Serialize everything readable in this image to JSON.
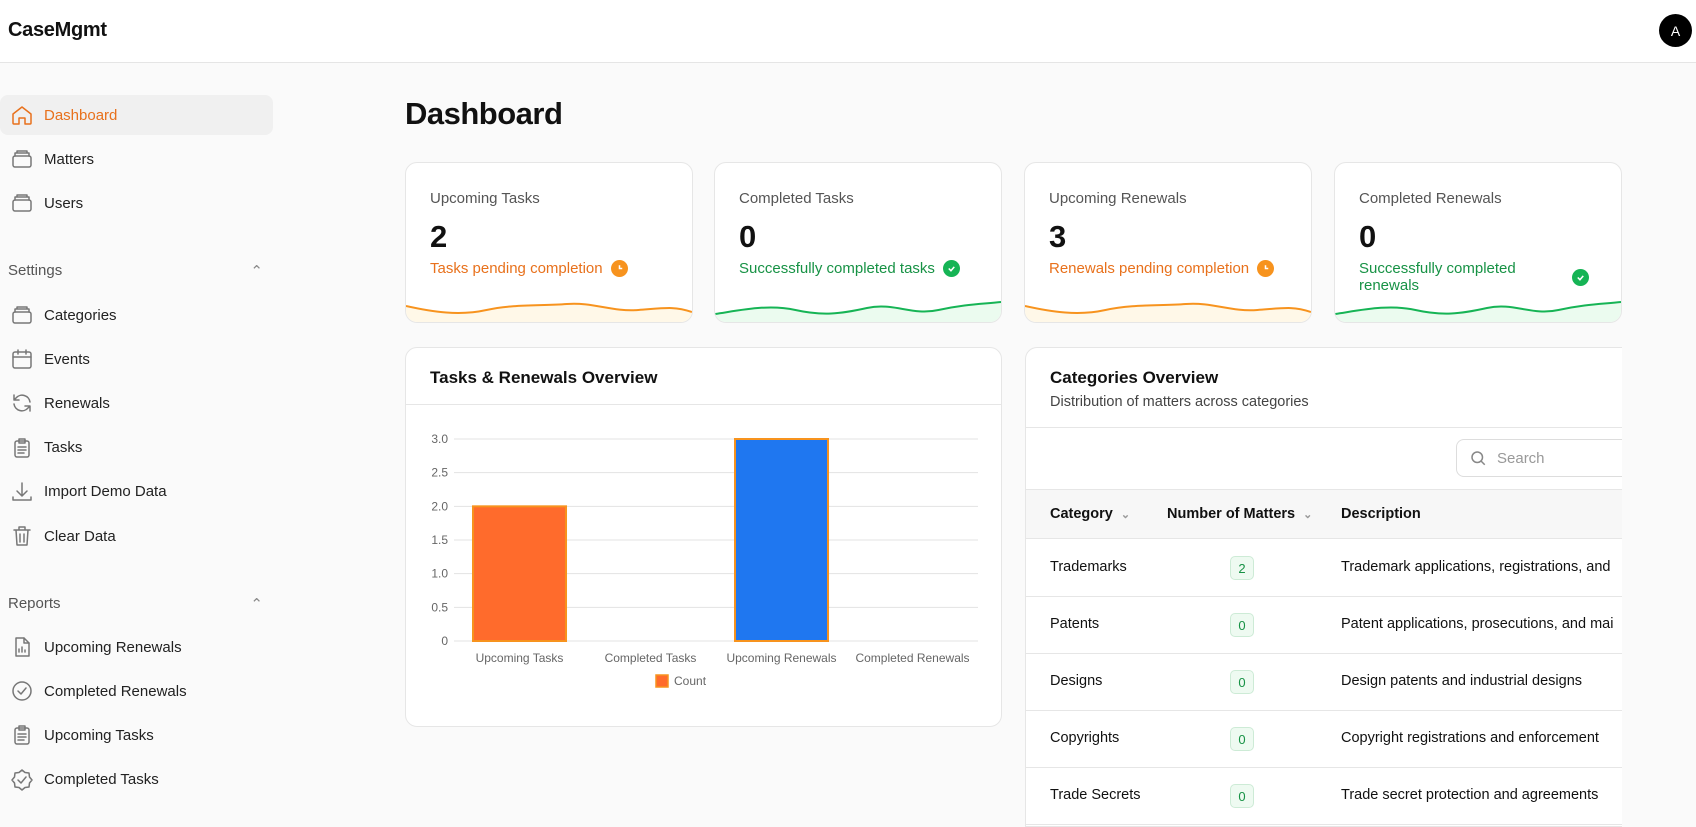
{
  "app": {
    "brand": "CaseMgmt",
    "avatar_initial": "A"
  },
  "sidebar": {
    "main": [
      {
        "label": "Dashboard",
        "icon": "home-icon"
      },
      {
        "label": "Matters",
        "icon": "archive-icon"
      },
      {
        "label": "Users",
        "icon": "archive-icon"
      }
    ],
    "settings_label": "Settings",
    "settings": [
      {
        "label": "Categories",
        "icon": "archive-icon"
      },
      {
        "label": "Events",
        "icon": "calendar-icon"
      },
      {
        "label": "Renewals",
        "icon": "refresh-icon"
      },
      {
        "label": "Tasks",
        "icon": "clipboard-icon"
      },
      {
        "label": "Import Demo Data",
        "icon": "download-icon"
      },
      {
        "label": "Clear Data",
        "icon": "trash-icon"
      }
    ],
    "reports_label": "Reports",
    "reports": [
      {
        "label": "Upcoming Renewals",
        "icon": "report-icon"
      },
      {
        "label": "Completed Renewals",
        "icon": "check-circle-icon"
      },
      {
        "label": "Upcoming Tasks",
        "icon": "clipboard-icon"
      },
      {
        "label": "Completed Tasks",
        "icon": "badge-check-icon"
      }
    ]
  },
  "page": {
    "title": "Dashboard"
  },
  "stats": [
    {
      "label": "Upcoming Tasks",
      "value": "2",
      "sub": "Tasks pending completion",
      "status": "pending"
    },
    {
      "label": "Completed Tasks",
      "value": "0",
      "sub": "Successfully completed tasks",
      "status": "done"
    },
    {
      "label": "Upcoming Renewals",
      "value": "3",
      "sub": "Renewals pending completion",
      "status": "pending"
    },
    {
      "label": "Completed Renewals",
      "value": "0",
      "sub": "Successfully completed renewals",
      "status": "done"
    }
  ],
  "colors": {
    "accent": "#e8711c",
    "pending": "#f7931e",
    "done": "#16b455",
    "bar_orange": "#ff6b2c",
    "bar_blue": "#1f77f0"
  },
  "chart": {
    "title": "Tasks & Renewals Overview"
  },
  "chart_data": {
    "type": "bar",
    "title": "Tasks & Renewals Overview",
    "categories": [
      "Upcoming Tasks",
      "Completed Tasks",
      "Upcoming Renewals",
      "Completed Renewals"
    ],
    "series": [
      {
        "name": "Count",
        "values": [
          2,
          0,
          3,
          0
        ]
      }
    ],
    "ylim": [
      0,
      3
    ],
    "yticks": [
      "0",
      "0.5",
      "1.0",
      "1.5",
      "2.0",
      "2.5",
      "3.0"
    ],
    "grid": true,
    "legend": "bottom"
  },
  "categories": {
    "title": "Categories Overview",
    "subtitle": "Distribution of matters across categories",
    "search_placeholder": "Search",
    "columns": [
      "Category",
      "Number of Matters",
      "Description"
    ],
    "rows": [
      {
        "name": "Trademarks",
        "count": "2",
        "desc": "Trademark applications, registrations, and"
      },
      {
        "name": "Patents",
        "count": "0",
        "desc": "Patent applications, prosecutions, and mai"
      },
      {
        "name": "Designs",
        "count": "0",
        "desc": "Design patents and industrial designs"
      },
      {
        "name": "Copyrights",
        "count": "0",
        "desc": "Copyright registrations and enforcement"
      },
      {
        "name": "Trade Secrets",
        "count": "0",
        "desc": "Trade secret protection and agreements"
      }
    ]
  }
}
